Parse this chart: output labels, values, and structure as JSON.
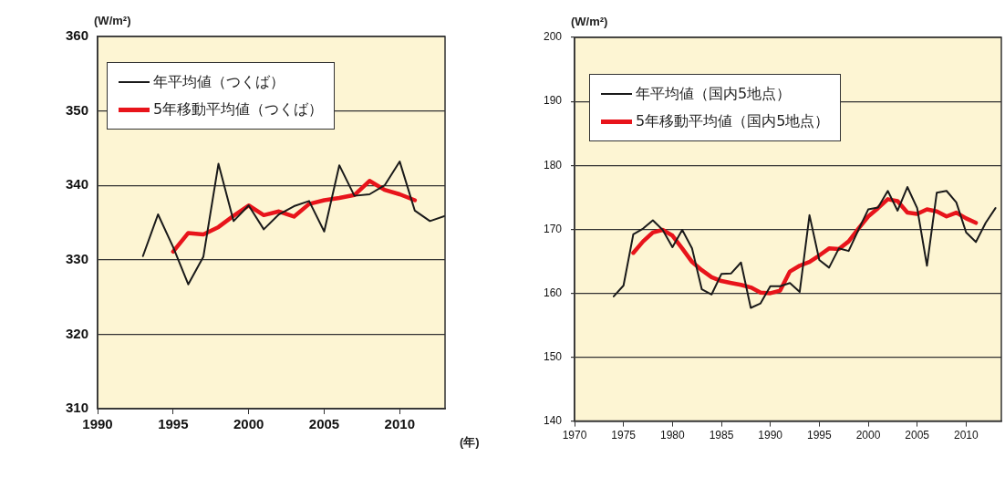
{
  "chart_data": [
    {
      "type": "line",
      "ylabel": "(W/m²)",
      "xlabel": "(年)",
      "xlim": [
        1990,
        2013
      ],
      "xticks": [
        1990,
        1995,
        2000,
        2005,
        2010
      ],
      "ylim": [
        310,
        360
      ],
      "yticks": [
        310,
        320,
        330,
        340,
        350,
        360
      ],
      "grid": "y",
      "legend": "top left",
      "series": [
        {
          "name": "年平均値（つくば）",
          "color": "#1a1a1a",
          "x": [
            1993,
            1994,
            1995,
            1996,
            1997,
            1998,
            1999,
            2000,
            2001,
            2002,
            2003,
            2004,
            2005,
            2006,
            2007,
            2008,
            2009,
            2010,
            2011,
            2012,
            2013
          ],
          "values": [
            330.5,
            336.1,
            331.7,
            326.7,
            330.4,
            342.9,
            335.2,
            337.3,
            334.1,
            336.1,
            337.2,
            337.9,
            333.8,
            342.7,
            338.6,
            338.8,
            340.0,
            343.2,
            336.6,
            335.2,
            335.9
          ]
        },
        {
          "name": "5年移動平均値（つくば）",
          "color": "#e8141b",
          "x": [
            1995,
            1996,
            1997,
            1998,
            1999,
            2000,
            2001,
            2002,
            2003,
            2004,
            2005,
            2006,
            2007,
            2008,
            2009,
            2010,
            2011
          ],
          "values": [
            331.1,
            333.6,
            333.4,
            334.4,
            335.9,
            337.3,
            336.0,
            336.5,
            335.8,
            337.5,
            338.0,
            338.3,
            338.7,
            340.6,
            339.4,
            338.8,
            338.0
          ]
        }
      ]
    },
    {
      "type": "line",
      "ylabel": "(W/m²)",
      "xlim": [
        1970,
        2013.6
      ],
      "xticks": [
        1970,
        1975,
        1980,
        1985,
        1990,
        1995,
        2000,
        2005,
        2010
      ],
      "ylim": [
        140,
        200
      ],
      "yticks": [
        140,
        150,
        160,
        170,
        180,
        190,
        200
      ],
      "grid": "y",
      "legend": "top left",
      "series": [
        {
          "name": "年平均値（国内5地点）",
          "color": "#1a1a1a",
          "x": [
            1974,
            1975,
            1976,
            1977,
            1978,
            1979,
            1980,
            1981,
            1982,
            1983,
            1984,
            1985,
            1986,
            1987,
            1988,
            1989,
            1990,
            1991,
            1992,
            1993,
            1994,
            1995,
            1996,
            1997,
            1998,
            1999,
            2000,
            2001,
            2002,
            2003,
            2004,
            2005,
            2006,
            2007,
            2008,
            2009,
            2010,
            2011,
            2012,
            2013
          ],
          "values": [
            159.5,
            161.2,
            169.2,
            170.1,
            171.4,
            169.9,
            167.2,
            169.9,
            167.0,
            160.6,
            159.8,
            163.0,
            163.1,
            164.8,
            157.7,
            158.4,
            161.1,
            161.1,
            161.6,
            160.2,
            172.2,
            165.2,
            164.0,
            167.0,
            166.6,
            169.9,
            173.1,
            173.4,
            176.0,
            172.9,
            176.6,
            173.3,
            164.3,
            175.7,
            176.0,
            174.2,
            169.5,
            168.0,
            171.0,
            173.3
          ]
        },
        {
          "name": "5年移動平均値（国内5地点）",
          "color": "#e8141b",
          "x": [
            1976,
            1977,
            1978,
            1979,
            1980,
            1981,
            1982,
            1983,
            1984,
            1985,
            1986,
            1987,
            1988,
            1989,
            1990,
            1991,
            1992,
            1993,
            1994,
            1995,
            1996,
            1997,
            1998,
            1999,
            2000,
            2001,
            2002,
            2003,
            2004,
            2005,
            2006,
            2007,
            2008,
            2009,
            2010,
            2011
          ],
          "values": [
            166.3,
            168.1,
            169.5,
            169.9,
            169.0,
            167.0,
            164.9,
            163.6,
            162.5,
            161.9,
            161.6,
            161.3,
            160.9,
            160.1,
            160.0,
            160.4,
            163.4,
            164.3,
            164.9,
            165.9,
            167.0,
            166.9,
            168.1,
            170.1,
            172.0,
            173.3,
            174.7,
            174.4,
            172.6,
            172.4,
            173.1,
            172.8,
            172.0,
            172.6,
            171.7,
            171.0
          ]
        }
      ]
    }
  ]
}
